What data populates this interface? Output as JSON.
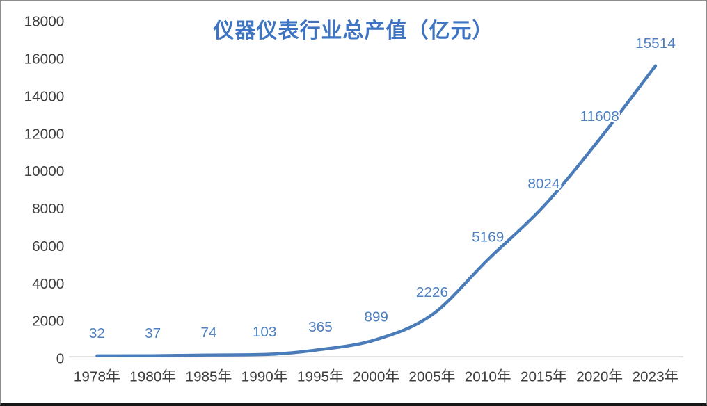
{
  "chart_data": {
    "type": "line",
    "title": "仪器仪表行业总产值（亿元）",
    "categories": [
      "1978年",
      "1980年",
      "1985年",
      "1990年",
      "1995年",
      "2000年",
      "2005年",
      "2010年",
      "2015年",
      "2020年",
      "2023年"
    ],
    "values": [
      32,
      37,
      74,
      103,
      365,
      899,
      2226,
      5169,
      8024,
      11608,
      15514
    ],
    "data_labels": [
      "32",
      "37",
      "74",
      "103",
      "365",
      "899",
      "2226",
      "5169",
      "8024",
      "11608",
      "15514"
    ],
    "xlabel": "",
    "ylabel": "",
    "ylim": [
      0,
      18000
    ],
    "ytick_step": 2000,
    "grid": false,
    "legend": "none",
    "smooth": true,
    "colors": {
      "line": "#4a7cba",
      "data_label": "#4e80c0",
      "title": "#3e74c2",
      "axis_text": "#3f3f3f",
      "axis_line": "#d9d9d9"
    }
  }
}
